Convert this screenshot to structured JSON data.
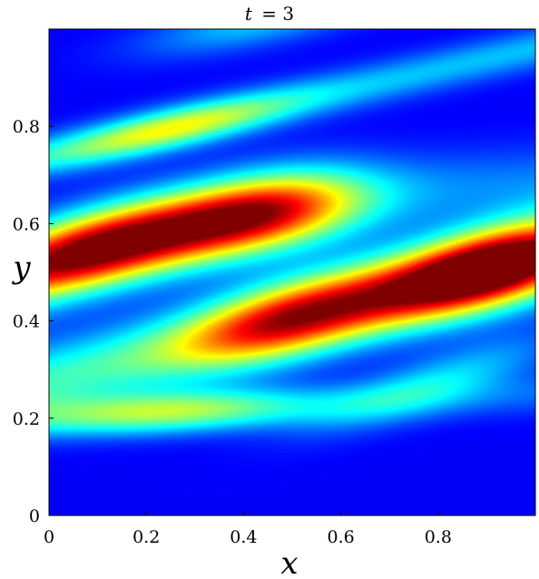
{
  "chart_data": {
    "type": "heatmap",
    "title_var": "t",
    "title_eq": "= 3",
    "xlabel": "x",
    "ylabel": "y",
    "xlim": [
      0,
      1
    ],
    "ylim": [
      0,
      1
    ],
    "xticks": [
      "0",
      "0.2",
      "0.4",
      "0.6",
      "0.8"
    ],
    "yticks": [
      "0",
      "0.2",
      "0.4",
      "0.6",
      "0.8"
    ],
    "colormap": "jet",
    "grid": false,
    "legend": "none"
  }
}
